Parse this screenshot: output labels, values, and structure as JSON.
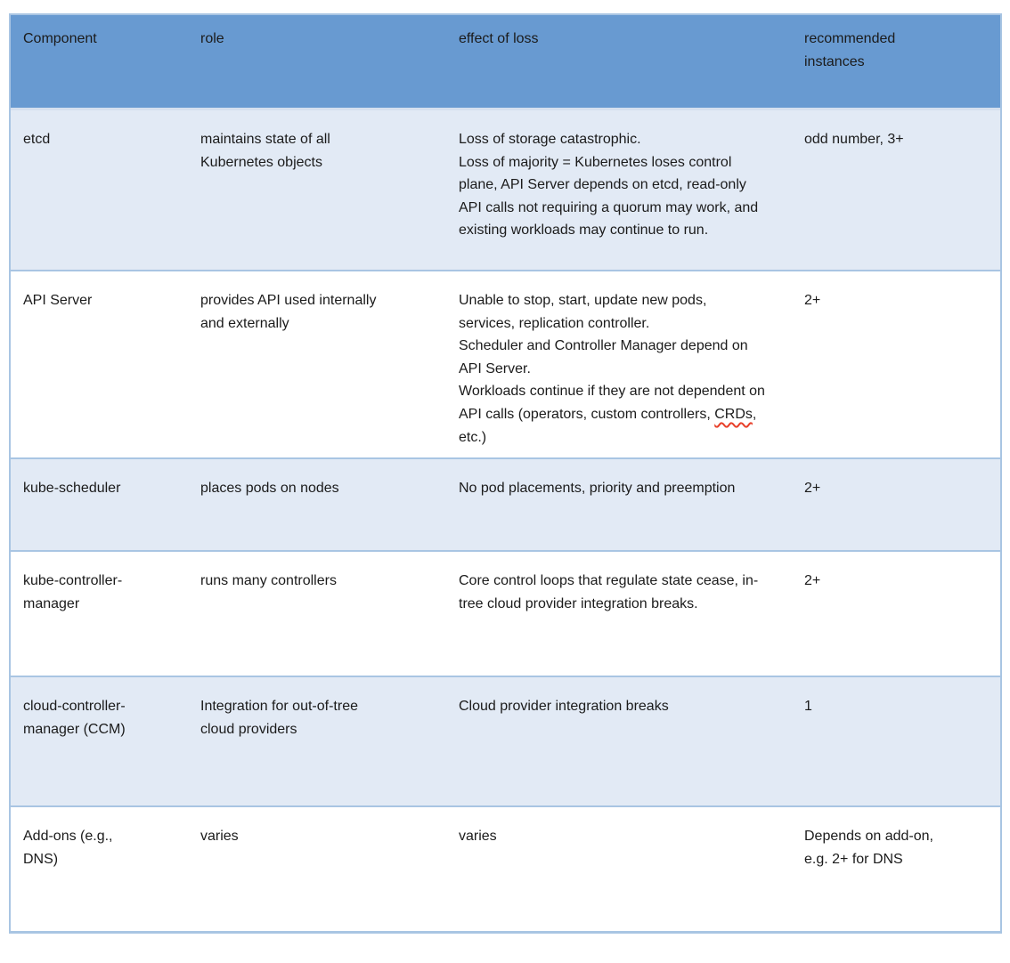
{
  "colors": {
    "header_bg": "#689ad1",
    "banded_row_bg": "#e2eaf5",
    "plain_row_bg": "#ffffff",
    "border": "#a9c5e3",
    "text": "#1b1b1b",
    "spellcheck_underline": "#e8402a"
  },
  "table": {
    "headers": [
      "Component",
      "role",
      "effect of loss",
      "recommended instances"
    ],
    "rows": [
      {
        "component": "etcd",
        "role": "maintains state of all Kubernetes objects",
        "effect_p1": "Loss of storage catastrophic.",
        "effect_p2": "Loss of majority = Kubernetes loses control plane, API Server depends on etcd, read-only API calls not requiring a quorum may work, and existing workloads may continue to run.",
        "instances": "odd number, 3+"
      },
      {
        "component": "API Server",
        "role": "provides API used internally and externally",
        "effect_p1": "Unable to stop, start, update new pods, services, replication controller.",
        "effect_p2": "Scheduler and Controller Manager depend on API Server.",
        "effect_p3_before": "Workloads continue if they are not dependent on API calls (operators, custom controllers, ",
        "effect_p3_flagged": "CRDs",
        "effect_p3_after": ", etc.)",
        "instances": "2+"
      },
      {
        "component": "kube-scheduler",
        "role": "places pods on nodes",
        "effect_p1": "No pod placements, priority and preemption",
        "instances": "2+"
      },
      {
        "component": "kube-controller-manager",
        "role": "runs many controllers",
        "effect_p1": "Core control loops that regulate state cease, in-tree cloud provider integration breaks.",
        "instances": "2+"
      },
      {
        "component": "cloud-controller-manager (CCM)",
        "role": "Integration for out-of-tree cloud providers",
        "effect_p1": "Cloud provider integration breaks",
        "instances": "1"
      },
      {
        "component": "Add-ons (e.g., DNS)",
        "role": "varies",
        "effect_p1": "varies",
        "instances": "Depends on add-on, e.g. 2+ for DNS"
      }
    ]
  }
}
